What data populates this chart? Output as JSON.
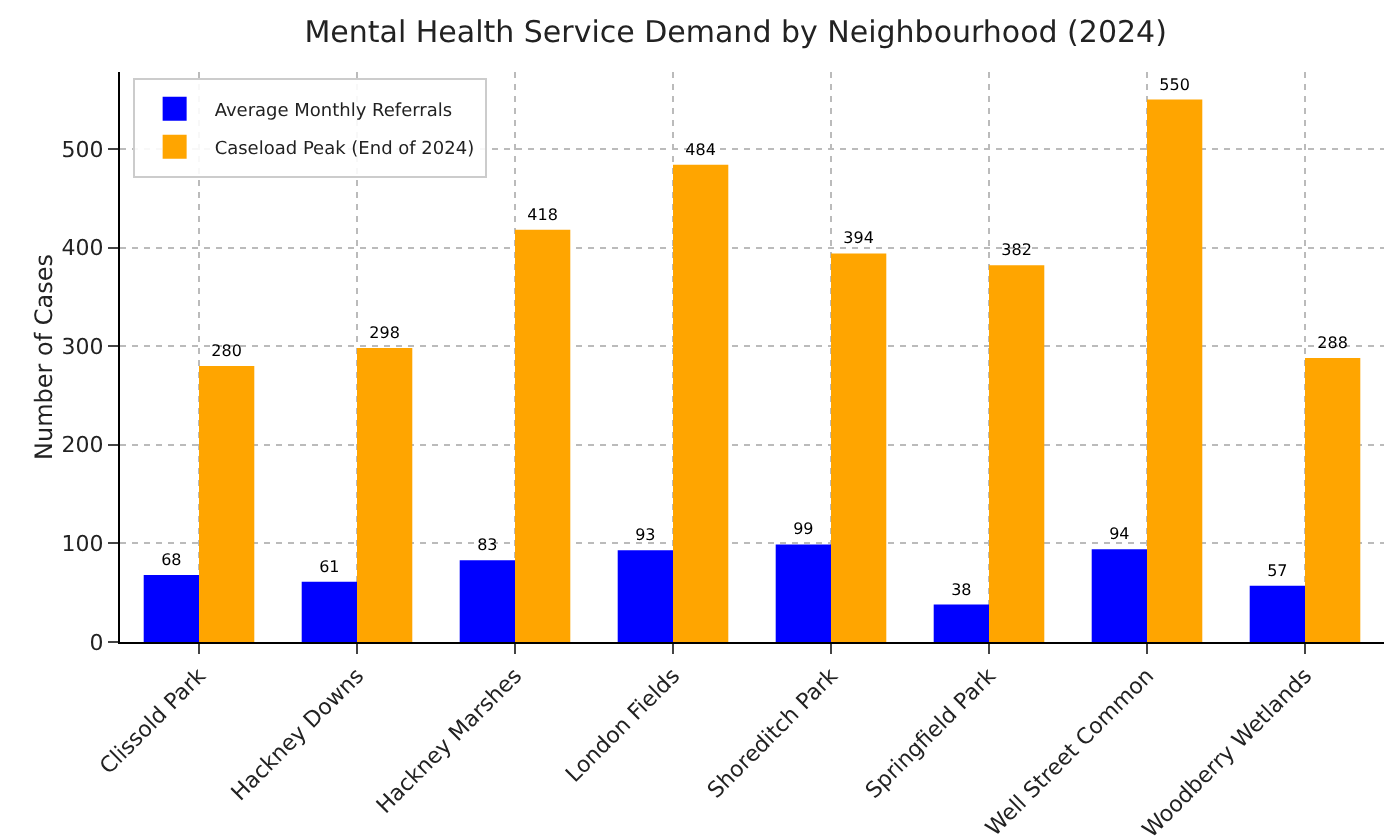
{
  "chart_data": {
    "type": "bar",
    "title": "Mental Health Service Demand by Neighbourhood (2024)",
    "ylabel": "Number of Cases",
    "categories": [
      "Clissold Park",
      "Hackney Downs",
      "Hackney Marshes",
      "London Fields",
      "Shoreditch Park",
      "Springfield Park",
      "Well Street Common",
      "Woodberry Wetlands"
    ],
    "series": [
      {
        "name": "Average Monthly Referrals",
        "color": "#0000ff",
        "values": [
          68,
          61,
          83,
          93,
          99,
          38,
          94,
          57
        ]
      },
      {
        "name": "Caseload Peak (End of 2024)",
        "color": "#ffa500",
        "values": [
          280,
          298,
          418,
          484,
          394,
          382,
          550,
          288
        ]
      }
    ],
    "ylim": [
      0,
      578
    ],
    "yticks": [
      0,
      100,
      200,
      300,
      400,
      500
    ],
    "grid": true,
    "legend": "top left",
    "data_labels": true
  }
}
